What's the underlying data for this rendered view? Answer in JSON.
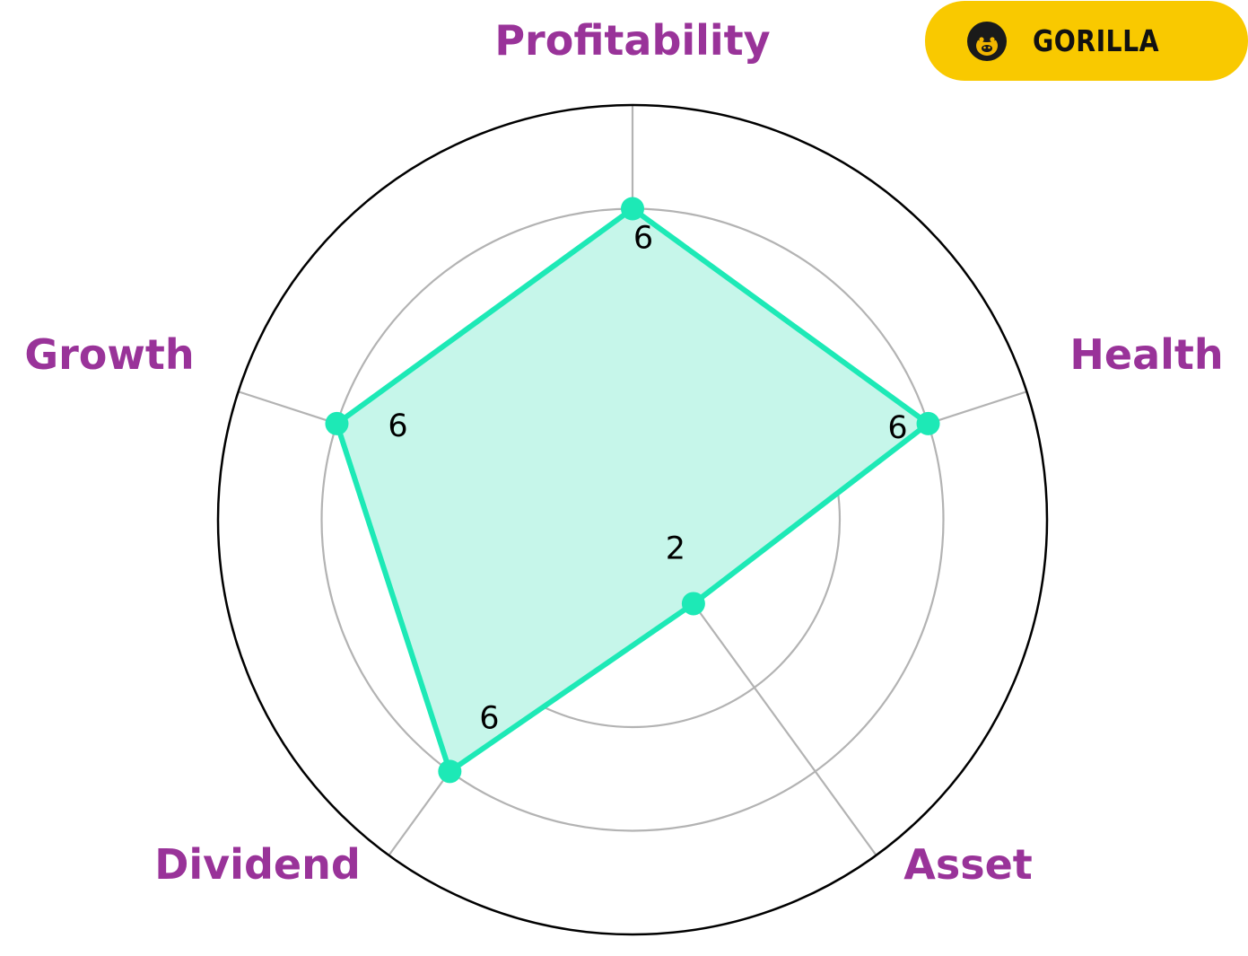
{
  "brand": {
    "name": "GORILLA",
    "badge_color": "#F9C900",
    "icon": "gorilla-face-icon"
  },
  "chart_data": {
    "type": "radar",
    "title": "",
    "categories": [
      "Profitability",
      "Health",
      "Asset",
      "Dividend",
      "Growth"
    ],
    "series": [
      {
        "values": [
          6,
          6,
          2,
          6,
          6
        ]
      }
    ],
    "value_labels": [
      "6",
      "6",
      "2",
      "6",
      "6"
    ],
    "rlim": [
      0,
      8
    ],
    "rings": [
      2,
      4,
      6,
      8
    ],
    "grid": true,
    "colors": {
      "series": "#1DE9B6",
      "fill": "#C6F6EA",
      "labels": "#993399",
      "grid": "#B3B3B3",
      "frame": "#000000"
    }
  }
}
